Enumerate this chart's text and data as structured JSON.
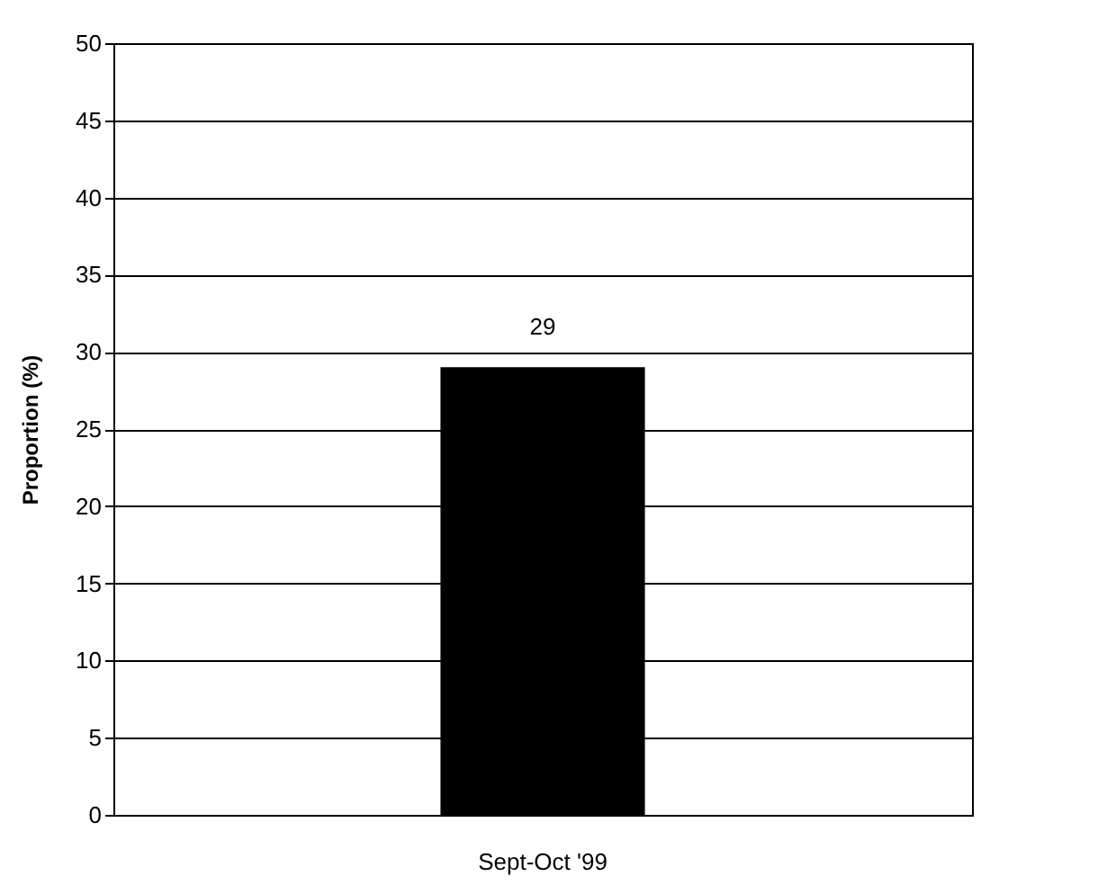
{
  "chart_data": {
    "type": "bar",
    "ylabel": "Proportion (%)",
    "categories": [
      "Sept-Oct '99"
    ],
    "values": [
      29
    ],
    "color": "#000000",
    "ylim": [
      0,
      50
    ],
    "yticks": [
      0,
      5,
      10,
      15,
      20,
      25,
      30,
      35,
      40,
      45,
      50
    ],
    "grid": "y",
    "data_labels": true
  }
}
